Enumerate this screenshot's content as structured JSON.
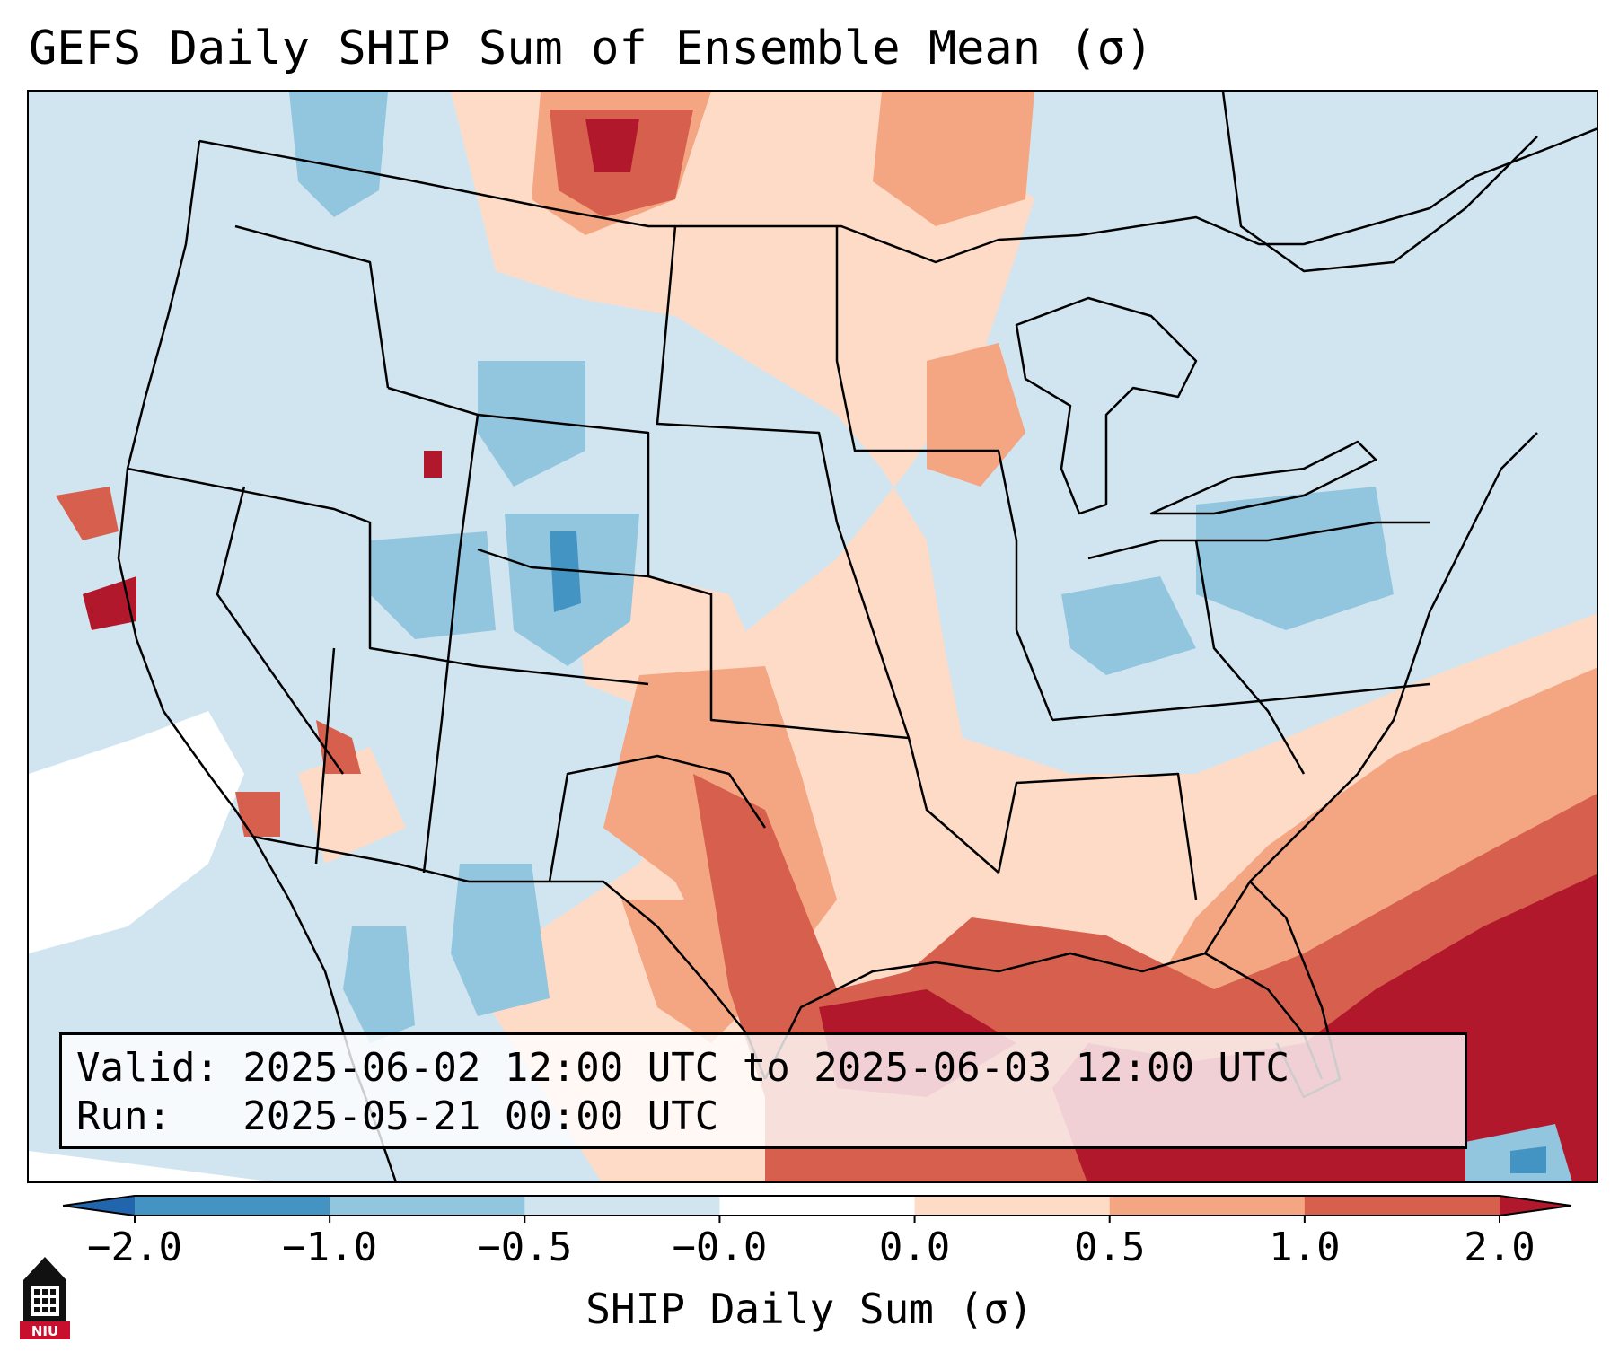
{
  "title": "GEFS Daily SHIP Sum of Ensemble Mean (σ)",
  "info": {
    "valid": "Valid: 2025-06-02 12:00 UTC to 2025-06-03 12:00 UTC",
    "run": "Run:   2025-05-21 00:00 UTC"
  },
  "colorbar": {
    "label": "SHIP Daily Sum (σ)",
    "ticks": [
      "−2.0",
      "−1.0",
      "−0.5",
      "−0.0",
      "0.0",
      "0.5",
      "1.0",
      "2.0"
    ],
    "colors": [
      "#4393c3",
      "#92c5de",
      "#d1e5f0",
      "#ffffff",
      "#fddbc7",
      "#f4a582",
      "#d6604d",
      "#b2182b"
    ],
    "under_color": "#2166ac",
    "over_color": "#b2182b"
  },
  "logo": {
    "text": "NIU"
  }
}
